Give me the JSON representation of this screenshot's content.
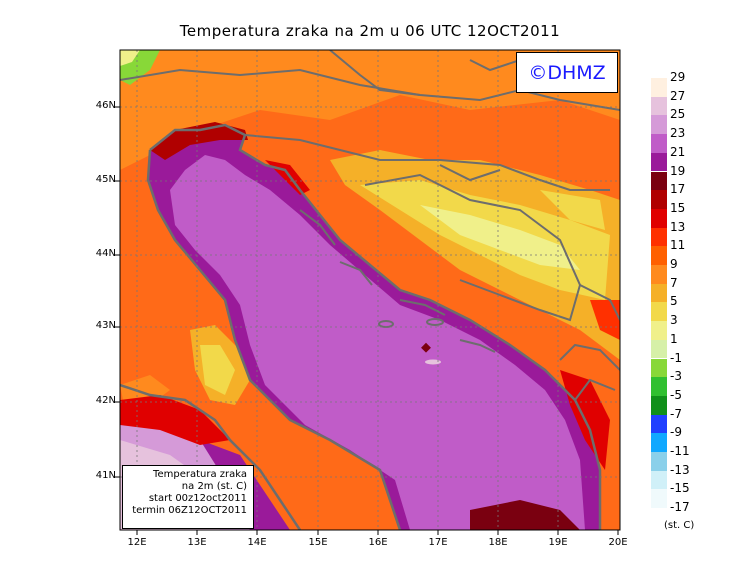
{
  "title": "Temperatura zraka na 2m u 06 UTC 12OCT2011",
  "logo": "©DHMZ",
  "info_box": {
    "line1": "Temperatura zraka",
    "line2": "na 2m (st. C)",
    "line3": "start 00z12oct2011",
    "line4": "termin 06Z12OCT2011"
  },
  "lat_labels": [
    "46N",
    "45N",
    "44N",
    "43N",
    "42N",
    "41N"
  ],
  "lon_labels": [
    "12E",
    "13E",
    "14E",
    "15E",
    "16E",
    "17E",
    "18E",
    "19E",
    "20E"
  ],
  "legend": {
    "labels": [
      "29",
      "27",
      "25",
      "23",
      "21",
      "19",
      "17",
      "15",
      "13",
      "11",
      "9",
      "7",
      "5",
      "3",
      "1",
      "-1",
      "-3",
      "-5",
      "-7",
      "-9",
      "-11",
      "-13",
      "-15",
      "-17"
    ],
    "colors": [
      "#fff0e0",
      "#e6c2dd",
      "#d59ad8",
      "#c05cc8",
      "#9a1a9a",
      "#7a0010",
      "#b00000",
      "#e00000",
      "#ff3000",
      "#ff6000",
      "#ff8a1e",
      "#f5b028",
      "#f2d94a",
      "#f0f08a",
      "#d6f0a8",
      "#88d838",
      "#30c030",
      "#10901a",
      "#2040ff",
      "#10a8ff",
      "#8ad0ea",
      "#d0f0f8",
      "#f0fafc"
    ],
    "unit": "(st. C)"
  }
}
